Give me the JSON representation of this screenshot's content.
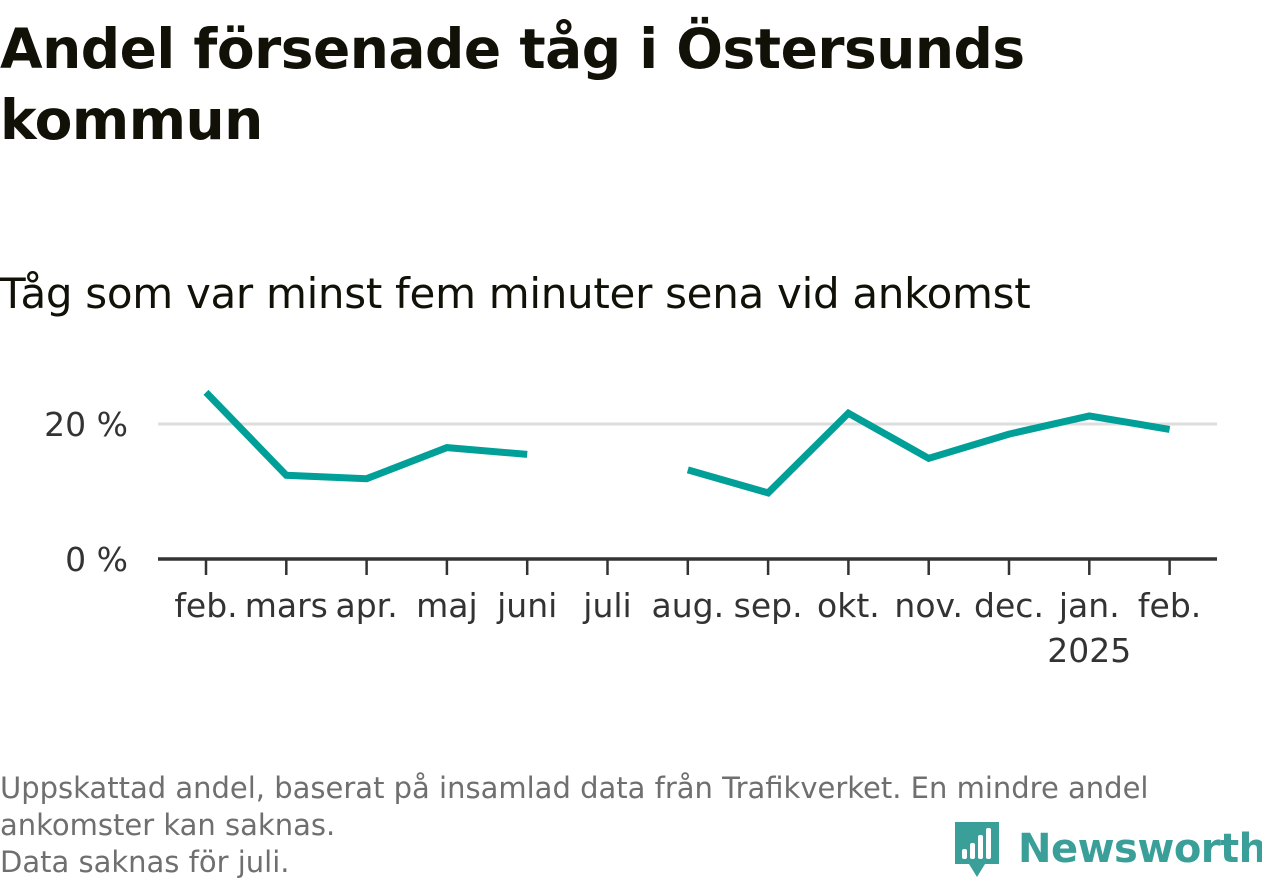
{
  "header": {
    "title": "Andel försenade tåg i Östersunds kommun",
    "subtitle": "Tåg som var minst fem minuter sena vid ankomst"
  },
  "chart_data": {
    "type": "line",
    "title": "Andel försenade tåg i Östersunds kommun",
    "subtitle": "Tåg som var minst fem minuter sena vid ankomst",
    "xlabel": "",
    "ylabel": "",
    "categories": [
      "feb.",
      "mars",
      "apr.",
      "maj",
      "juni",
      "juli",
      "aug.",
      "sep.",
      "okt.",
      "nov.",
      "dec.",
      "jan.",
      "feb."
    ],
    "year_label": "2025",
    "year_label_under": "jan.",
    "series": [
      {
        "values": [
          24.7,
          12.4,
          11.9,
          16.5,
          15.5,
          null,
          13.2,
          9.8,
          21.6,
          14.9,
          18.5,
          21.2,
          19.2
        ]
      }
    ],
    "y_ticks": [
      0,
      20
    ],
    "y_tick_labels": [
      "0 %",
      "20 %"
    ],
    "ylim": [
      0,
      26
    ],
    "grid": true,
    "colors": {
      "line": "#00a098",
      "grid": "#dddddd",
      "axis": "#333333"
    }
  },
  "footer": {
    "note_line1": "Uppskattad andel, baserat på insamlad data från Trafikverket. En mindre andel ankomster kan saknas.",
    "note_line2": "Data saknas för juli."
  },
  "brand": {
    "name": "Newsworthy",
    "icon": "bar-chart-speech-bubble-icon",
    "color": "#3a9f99"
  }
}
